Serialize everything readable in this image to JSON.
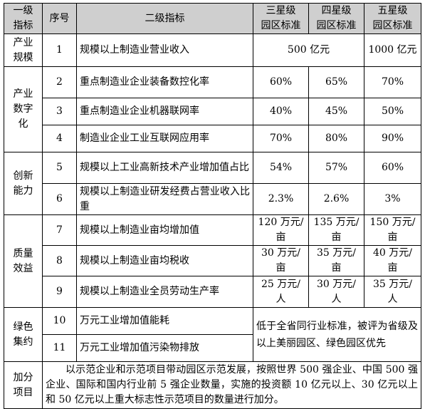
{
  "headers": {
    "level1": "一级\n指标",
    "seq": "序号",
    "level2": "二级指标",
    "three_star": "三星级\n园区标准",
    "four_star": "四星级\n园区标准",
    "five_star": "五星级\n园区标准"
  },
  "categories": {
    "scale": "产业\n规模",
    "digital": "产业\n数字\n化",
    "innovation": "创新\n能力",
    "quality": "质量\n效益",
    "green": "绿色\n集约",
    "bonus": "加分\n项目"
  },
  "rows": [
    {
      "seq": "1",
      "name": "规模以上制造业营业收入",
      "three_four": "500 亿元",
      "five": "1000 亿元"
    },
    {
      "seq": "2",
      "name": "重点制造业企业装备数控化率",
      "three": "60%",
      "four": "65%",
      "five": "70%"
    },
    {
      "seq": "3",
      "name": "重点制造业企业机器联网率",
      "three": "40%",
      "four": "45%",
      "five": "50%"
    },
    {
      "seq": "4",
      "name": "制造业企业工业互联网应用率",
      "three": "70%",
      "four": "80%",
      "five": "90%"
    },
    {
      "seq": "5",
      "name": "规模以上工业高新技术产业增加值占比",
      "three": "54%",
      "four": "57%",
      "five": "60%"
    },
    {
      "seq": "6",
      "name": "规模以上制造业研发经费占营业收入比重",
      "three": "2.3%",
      "four": "2.6%",
      "five": "3%"
    },
    {
      "seq": "7",
      "name": "规模以上制造业亩均增加值",
      "three": "120 万元/\n亩",
      "four": "135 万元/\n亩",
      "five": "150 万元/\n亩"
    },
    {
      "seq": "8",
      "name": "规模以上制造业亩均税收",
      "three": "30 万元/\n亩",
      "four": "35 万元/\n亩",
      "five": "40 万元/\n亩"
    },
    {
      "seq": "9",
      "name": "规模以上制造业全员劳动生产率",
      "three": "25 万元/\n人",
      "four": "30 万元/\n人",
      "five": "35 万元/\n人"
    },
    {
      "seq": "10",
      "name": "万元工业增加值能耗"
    },
    {
      "seq": "11",
      "name": "万元工业增加值污染物排放"
    }
  ],
  "green_standard": "低于全省同行业标准，被评为省级及以上美丽园区、绿色园区优先",
  "bonus_text": "以示范企业和示范项目带动园区示范发展，按照世界 500 强企业、中国 500 强企业、国际和国内行业前 5 强企业数量，实施的投资额 10 亿元以上、30 亿元以上和 50 亿元以上重大标志性示范项目的数量进行加分。"
}
